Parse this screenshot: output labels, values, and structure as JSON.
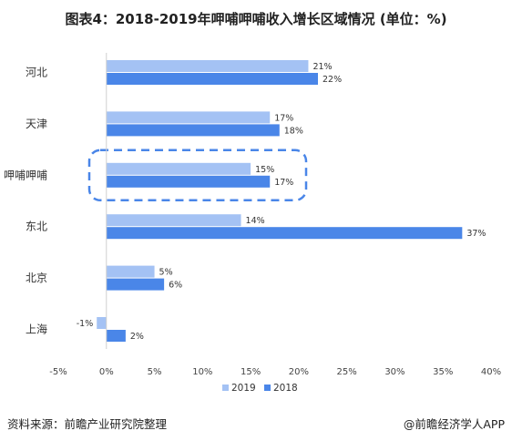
{
  "chart_data": {
    "type": "bar",
    "orientation": "horizontal",
    "title": "图表4：2018-2019年呷哺呷哺收入增长区域情况 (单位：%)",
    "categories": [
      "河北",
      "天津",
      "呷哺呷哺",
      "东北",
      "北京",
      "上海"
    ],
    "series": [
      {
        "name": "2019",
        "values": [
          21,
          17,
          15,
          14,
          5,
          -1
        ],
        "labels": [
          "21%",
          "17%",
          "15%",
          "14%",
          "5%",
          "-1%"
        ],
        "color": "#a4c2f4"
      },
      {
        "name": "2018",
        "values": [
          22,
          18,
          17,
          37,
          6,
          2
        ],
        "labels": [
          "22%",
          "18%",
          "17%",
          "37%",
          "6%",
          "2%"
        ],
        "color": "#4a86e8"
      }
    ],
    "xlim": [
      -5,
      40
    ],
    "xticks": [
      -5,
      0,
      5,
      10,
      15,
      20,
      25,
      30,
      35,
      40
    ],
    "xtick_labels": [
      "-5%",
      "0%",
      "5%",
      "10%",
      "15%",
      "20%",
      "25%",
      "30%",
      "35%",
      "40%"
    ],
    "highlight_category": "呷哺呷哺",
    "highlight_color": "#4a86e8",
    "legend_position": "bottom",
    "grid": false
  },
  "footer": {
    "source": "资料来源：前瞻产业研究院整理",
    "brand": "@前瞻经济学人APP"
  }
}
